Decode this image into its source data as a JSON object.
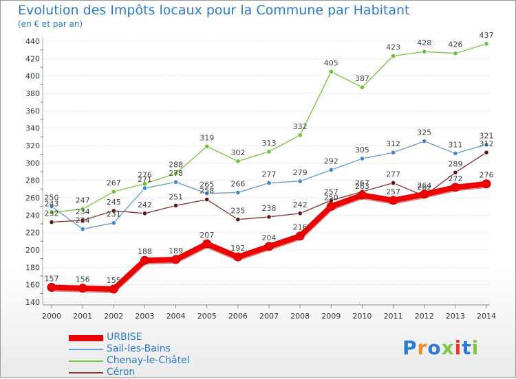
{
  "title": "Evolution des Impôts locaux pour la Commune par Habitant",
  "subtitle": "(en € et par an)",
  "brand": "Proxiti",
  "chart_data": {
    "type": "line",
    "title": "Evolution des Impôts locaux pour la Commune par Habitant",
    "subtitle": "(en € et par an)",
    "x": [
      2000,
      2001,
      2002,
      2003,
      2004,
      2005,
      2006,
      2007,
      2008,
      2009,
      2010,
      2011,
      2012,
      2013,
      2014
    ],
    "ylim": [
      140,
      440
    ],
    "yticks": [
      140,
      160,
      180,
      200,
      220,
      240,
      260,
      280,
      300,
      320,
      340,
      360,
      380,
      400,
      420,
      440
    ],
    "grid": "horizontal dotted",
    "legend_position": "bottom-left",
    "series": [
      {
        "name": "Chenay-le-Châtel",
        "color": "#7ac943",
        "marker": "#6cc034",
        "values": [
          243,
          247,
          267,
          276,
          288,
          319,
          302,
          313,
          332,
          405,
          387,
          423,
          428,
          426,
          437
        ]
      },
      {
        "name": "Sail-les-Bains",
        "color": "#6a9fd4",
        "marker": "#3f86cf",
        "values": [
          250,
          224,
          231,
          271,
          278,
          265,
          266,
          277,
          279,
          292,
          305,
          312,
          325,
          311,
          321
        ]
      },
      {
        "name": "Céron",
        "color": "#8b3a3a",
        "marker": "#5e1212",
        "values": [
          232,
          234,
          245,
          242,
          251,
          258,
          235,
          238,
          242,
          257,
          267,
          277,
          262,
          289,
          312
        ]
      },
      {
        "name": "URBISE",
        "color": "#ee0000",
        "marker": "#ee0000",
        "values": [
          157,
          156,
          155,
          188,
          189,
          207,
          192,
          204,
          216,
          250,
          263,
          257,
          264,
          272,
          276
        ]
      }
    ]
  }
}
